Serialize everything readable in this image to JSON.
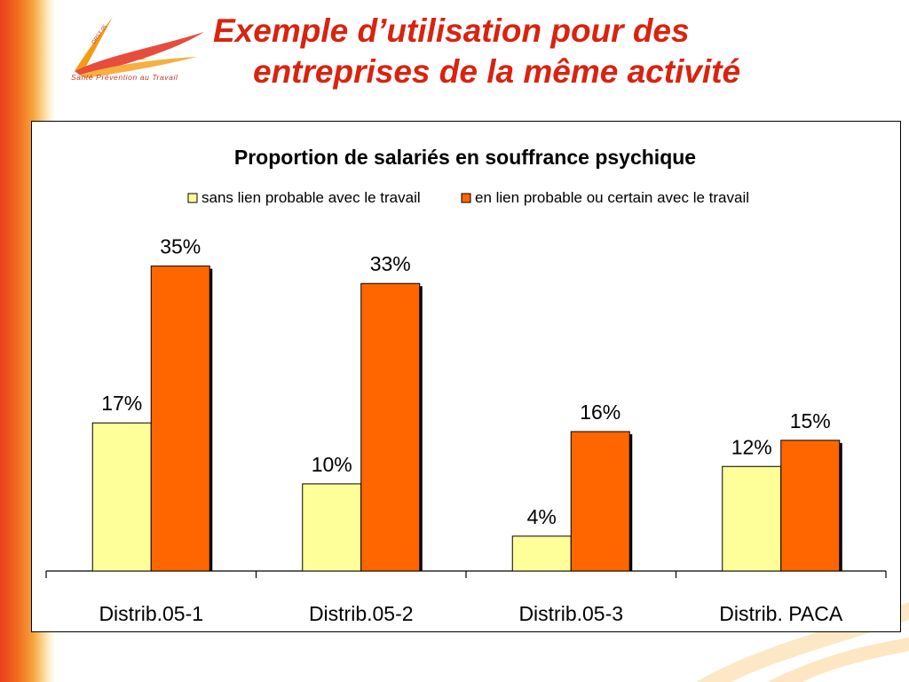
{
  "slide": {
    "title_line1": "Exemple d’utilisation pour des",
    "title_line2": "entreprises de la même activité",
    "logo_text": "Santé  Prévention  au  Travail"
  },
  "colors": {
    "title": "#d9230f",
    "series1": "#ffff99",
    "series2": "#ff6600",
    "band": "#e8401c"
  },
  "chart_data": {
    "type": "bar",
    "title": "Proportion de salariés en souffrance psychique",
    "categories": [
      "Distrib.05-1",
      "Distrib.05-2",
      "Distrib.05-3",
      "Distrib. PACA"
    ],
    "series": [
      {
        "name": "sans lien probable avec le travail",
        "values": [
          17,
          10,
          4,
          12
        ],
        "labels": [
          "17%",
          "10%",
          "4%",
          "12%"
        ],
        "color": "#ffff99"
      },
      {
        "name": "en lien probable ou certain avec le travail",
        "values": [
          35,
          33,
          16,
          15
        ],
        "labels": [
          "35%",
          "33%",
          "16%",
          "15%"
        ],
        "color": "#ff6600"
      }
    ],
    "legend_position": "top",
    "grid": false,
    "ylim": [
      0,
      37
    ]
  }
}
